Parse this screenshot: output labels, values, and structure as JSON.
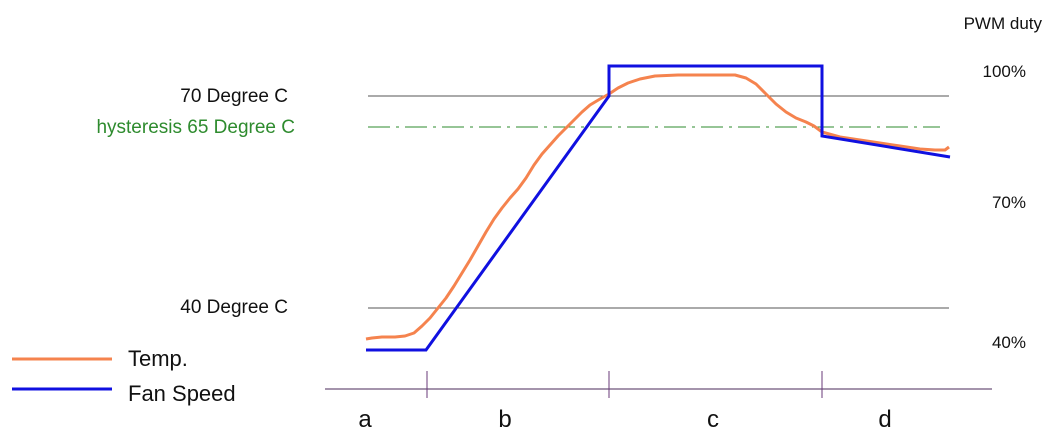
{
  "labels": {
    "pwm_title": "PWM duty",
    "temp_70": "70 Degree C",
    "hysteresis": "hysteresis 65 Degree C",
    "temp_40": "40 Degree C",
    "pwm_100": "100%",
    "pwm_70": "70%",
    "pwm_40": "40%"
  },
  "legend": {
    "temp": "Temp.",
    "fan": "Fan Speed"
  },
  "regions": [
    "a",
    "b",
    "c",
    "d"
  ],
  "colors": {
    "temp_curve": "#f5834e",
    "fan_curve": "#1010e0",
    "hysteresis": "#2e8b2e",
    "reference_line": "#555555",
    "axis": "#4a2a5a"
  }
}
